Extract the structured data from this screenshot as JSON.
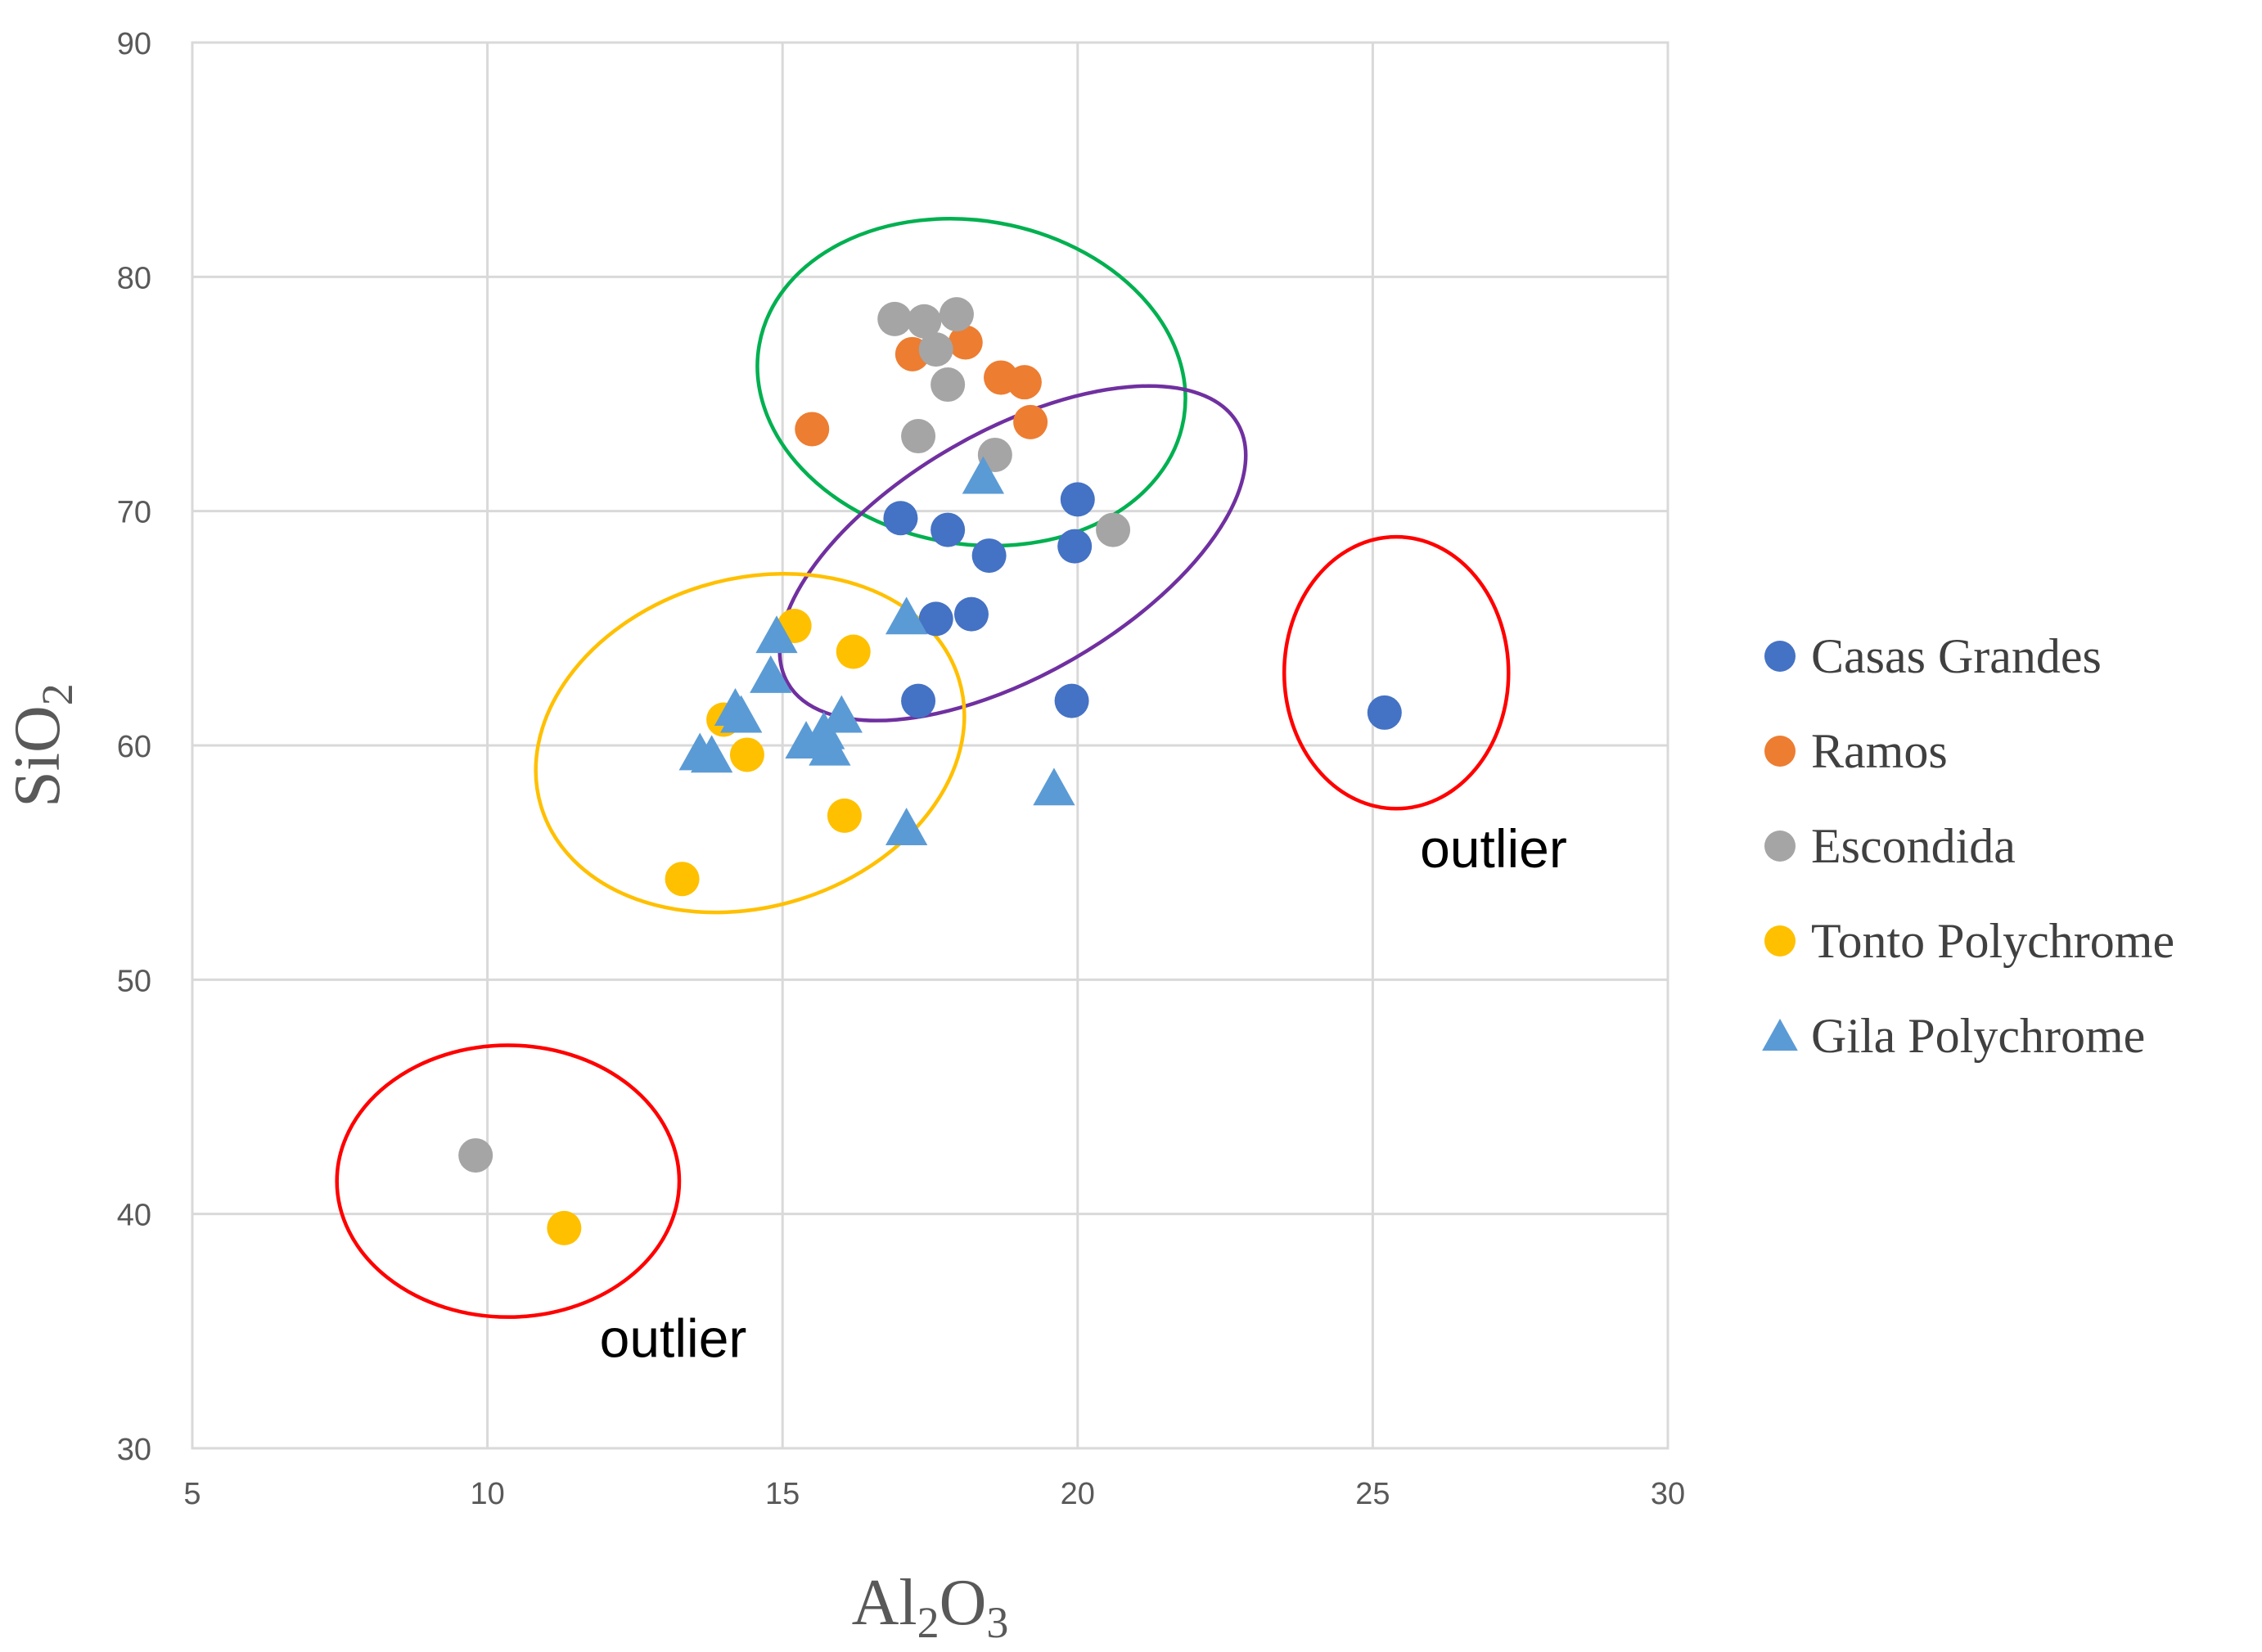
{
  "chart_data": {
    "type": "scatter",
    "title": "",
    "xlabel_main": "Al",
    "xlabel_sub1": "2",
    "xlabel_mid": "O",
    "xlabel_sub2": "3",
    "ylabel_main": "SiO",
    "ylabel_sub": "2",
    "xlim": [
      5,
      30
    ],
    "ylim": [
      30,
      90
    ],
    "x_ticks": [
      "5",
      "10",
      "15",
      "20",
      "25",
      "30"
    ],
    "y_ticks": [
      "30",
      "40",
      "50",
      "60",
      "70",
      "80",
      "90"
    ],
    "grid": true,
    "legend_position": "right",
    "series": [
      {
        "name": "Casas Grandes",
        "marker": "circle",
        "color": "#4472C4",
        "points": [
          [
            17.0,
            69.7
          ],
          [
            17.8,
            69.2
          ],
          [
            18.5,
            68.1
          ],
          [
            20.0,
            70.5
          ],
          [
            19.95,
            68.5
          ],
          [
            17.6,
            65.4
          ],
          [
            18.2,
            65.6
          ],
          [
            17.3,
            61.9
          ],
          [
            19.9,
            61.9
          ],
          [
            25.2,
            61.4
          ]
        ]
      },
      {
        "name": "Ramos",
        "marker": "circle",
        "color": "#ED7D31",
        "points": [
          [
            15.5,
            73.5
          ],
          [
            17.2,
            76.7
          ],
          [
            18.1,
            77.2
          ],
          [
            18.7,
            75.7
          ],
          [
            19.1,
            75.5
          ],
          [
            19.2,
            73.8
          ]
        ]
      },
      {
        "name": "Escondida",
        "marker": "circle",
        "color": "#A5A5A5",
        "points": [
          [
            16.9,
            78.2
          ],
          [
            17.4,
            78.1
          ],
          [
            17.95,
            78.4
          ],
          [
            17.6,
            76.9
          ],
          [
            17.8,
            75.4
          ],
          [
            17.3,
            73.2
          ],
          [
            18.6,
            72.4
          ],
          [
            20.6,
            69.2
          ],
          [
            9.8,
            42.5
          ]
        ]
      },
      {
        "name": "Tonto Polychrome",
        "marker": "circle",
        "color": "#FFC000",
        "points": [
          [
            15.2,
            65.1
          ],
          [
            16.2,
            64.0
          ],
          [
            14.0,
            61.1
          ],
          [
            14.4,
            59.6
          ],
          [
            16.05,
            57.0
          ],
          [
            13.3,
            54.3
          ],
          [
            11.3,
            39.4
          ]
        ]
      },
      {
        "name": "Gila Polychrome",
        "marker": "triangle",
        "color": "#5B9BD5",
        "points": [
          [
            18.4,
            71.4
          ],
          [
            14.9,
            64.6
          ],
          [
            17.1,
            65.4
          ],
          [
            14.8,
            62.9
          ],
          [
            14.2,
            61.5
          ],
          [
            14.3,
            61.2
          ],
          [
            16.0,
            61.2
          ],
          [
            15.7,
            60.5
          ],
          [
            15.4,
            60.1
          ],
          [
            15.8,
            59.8
          ],
          [
            13.6,
            59.6
          ],
          [
            13.8,
            59.5
          ],
          [
            19.6,
            58.1
          ],
          [
            17.1,
            56.4
          ]
        ]
      }
    ],
    "ellipses": [
      {
        "name": "green-cluster-ellipse",
        "color": "#00B050",
        "cx": 18.2,
        "cy": 75.5,
        "rx": 3.65,
        "ry": 6.9,
        "angle": 10
      },
      {
        "name": "purple-cluster-ellipse",
        "color": "#7030A0",
        "cx": 18.9,
        "cy": 68.2,
        "rx": 4.4,
        "ry": 5.2,
        "angle": -30
      },
      {
        "name": "yellow-cluster-ellipse",
        "color": "#FFC000",
        "cx": 14.45,
        "cy": 60.1,
        "rx": 3.7,
        "ry": 7.0,
        "angle": -17
      },
      {
        "name": "red-outlier-ellipse-right",
        "color": "#FF0000",
        "cx": 25.4,
        "cy": 63.1,
        "rx": 1.9,
        "ry": 5.8,
        "angle": 0
      },
      {
        "name": "red-outlier-ellipse-left",
        "color": "#FF0000",
        "cx": 10.35,
        "cy": 41.4,
        "rx": 2.9,
        "ry": 5.8,
        "angle": 0
      }
    ],
    "annotations": [
      {
        "text": "outlier",
        "x": 25.8,
        "y": 54.8
      },
      {
        "text": "outlier",
        "x": 11.9,
        "y": 33.9
      }
    ]
  }
}
